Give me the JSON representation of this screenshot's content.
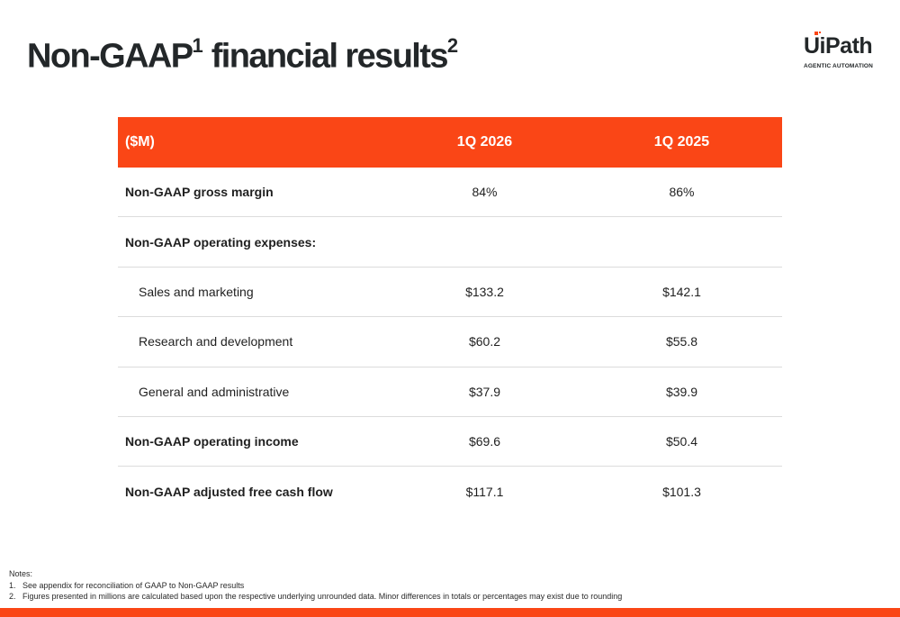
{
  "slide": {
    "title": "Non-GAAP",
    "title_sup1": "1",
    "title_rest": " financial results",
    "title_sup2": "2"
  },
  "logo": {
    "word": "UiPath",
    "tagline": "AGENTIC AUTOMATION"
  },
  "table": {
    "headers": [
      "($M)",
      "1Q 2026",
      "1Q 2025"
    ],
    "rows": [
      {
        "label": "Non-GAAP gross margin",
        "q2026": "84%",
        "q2025": "86%"
      },
      {
        "label": "Non-GAAP operating expenses:",
        "q2026": "",
        "q2025": ""
      },
      {
        "label": "Sales and marketing",
        "q2026": "$133.2",
        "q2025": "$142.1"
      },
      {
        "label": "Research and development",
        "q2026": "$60.2",
        "q2025": "$55.8"
      },
      {
        "label": "General and administrative",
        "q2026": "$37.9",
        "q2025": "$39.9"
      },
      {
        "label": "Non-GAAP operating income",
        "q2026": "$69.6",
        "q2025": "$50.4"
      },
      {
        "label": "Non-GAAP adjusted free cash flow",
        "q2026": "$117.1",
        "q2025": "$101.3"
      }
    ]
  },
  "notes": {
    "heading": "Notes:",
    "items": [
      {
        "num": "1.",
        "text": "See appendix for reconciliation of GAAP to Non-GAAP results"
      },
      {
        "num": "2.",
        "text": "Figures presented in millions are calculated based upon the respective underlying unrounded data. Minor differences in totals or percentages may exist due to rounding"
      }
    ]
  },
  "colors": {
    "accent": "#fa4616",
    "title_text": "#232729",
    "divider": "#dcdcdc"
  }
}
